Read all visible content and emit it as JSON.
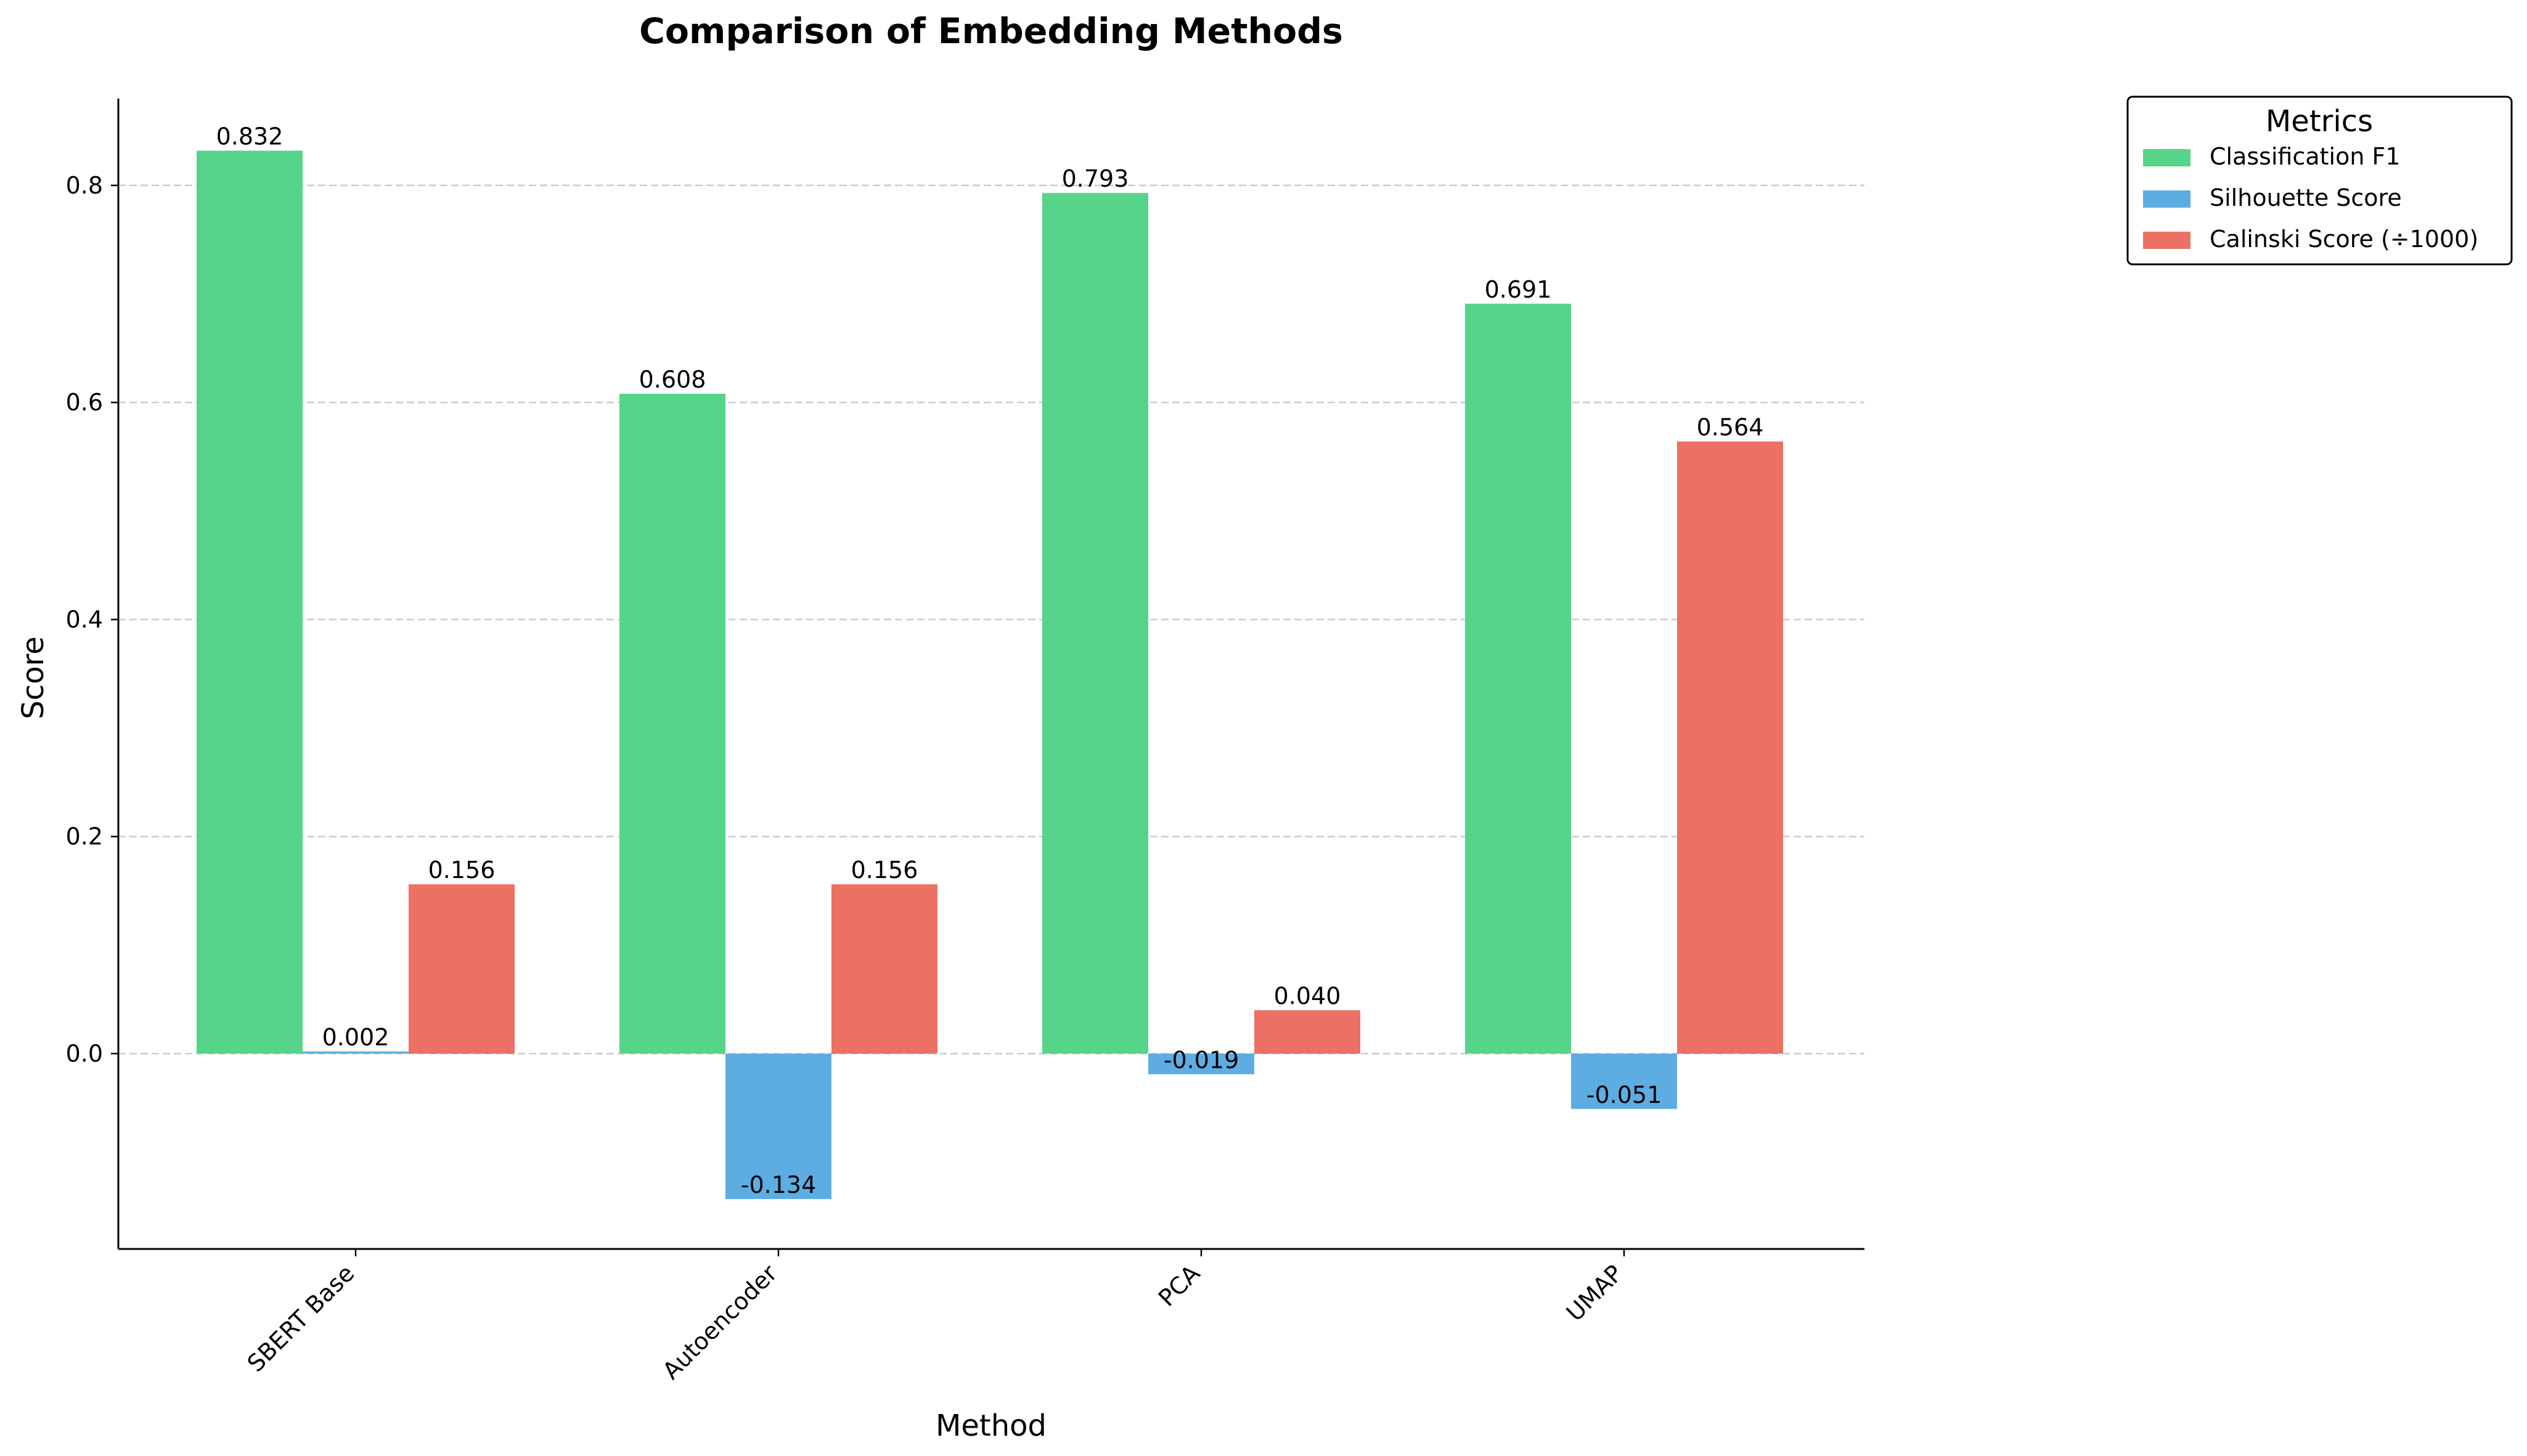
{
  "chart_data": {
    "type": "bar",
    "title": "Comparison of Embedding Methods",
    "xlabel": "Method",
    "ylabel": "Score",
    "categories": [
      "SBERT Base",
      "Autoencoder",
      "PCA",
      "UMAP"
    ],
    "series": [
      {
        "name": "Classification F1",
        "color": "#55d48a",
        "values": [
          0.832,
          0.608,
          0.793,
          0.691
        ],
        "labels": [
          "0.832",
          "0.608",
          "0.793",
          "0.691"
        ]
      },
      {
        "name": "Silhouette Score",
        "color": "#5dade2",
        "values": [
          0.002,
          -0.134,
          -0.019,
          -0.051
        ],
        "labels": [
          "0.002",
          "-0.134",
          "-0.019",
          "-0.051"
        ]
      },
      {
        "name": "Calinski Score (÷1000)",
        "color": "#ec7063",
        "values": [
          0.156,
          0.156,
          0.04,
          0.564
        ],
        "labels": [
          "0.156",
          "0.156",
          "0.040",
          "0.564"
        ]
      }
    ],
    "yticks": [
      0.0,
      0.2,
      0.4,
      0.6,
      0.8
    ],
    "ytick_labels": [
      "0.0",
      "0.2",
      "0.4",
      "0.6",
      "0.8"
    ],
    "ylim": [
      -0.18,
      0.88
    ],
    "grid": "y-dashed",
    "legend": {
      "title": "Metrics",
      "position": "outside-top-right"
    }
  }
}
